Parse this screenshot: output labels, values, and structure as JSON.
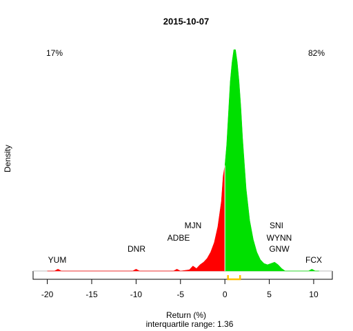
{
  "chart_data": {
    "type": "density",
    "title": "2015-10-07",
    "xlabel": "Return (%)",
    "subtitle": "interquartile range: 1.36",
    "ylabel": "Density",
    "left_share": "17%",
    "right_share": "82%",
    "x": [
      -20,
      -19.2,
      -18.8,
      -18.4,
      -10.4,
      -10,
      -9.6,
      -5.8,
      -5.4,
      -5,
      -4,
      -3.6,
      -3.2,
      -2.8,
      -2.4,
      -2,
      -1.6,
      -1.2,
      -0.8,
      -0.4,
      -0.2,
      0,
      0.2,
      0.4,
      0.6,
      0.8,
      1,
      1.2,
      1.4,
      1.6,
      1.8,
      2,
      2.4,
      2.8,
      3.2,
      3.6,
      4,
      4.4,
      4.8,
      5.2,
      5.6,
      6,
      6.4,
      6.8,
      9.4,
      9.8,
      10.2,
      10.6
    ],
    "values": [
      0,
      0,
      0.003,
      0,
      0,
      0.003,
      0,
      0,
      0.003,
      0,
      0.002,
      0.008,
      0.004,
      0.01,
      0.014,
      0.02,
      0.03,
      0.045,
      0.07,
      0.11,
      0.15,
      0.167,
      0.2,
      0.25,
      0.3,
      0.33,
      0.35,
      0.35,
      0.33,
      0.3,
      0.26,
      0.21,
      0.13,
      0.08,
      0.05,
      0.03,
      0.018,
      0.012,
      0.01,
      0.012,
      0.014,
      0.01,
      0.004,
      0,
      0,
      0.003,
      0,
      0
    ],
    "negative_color": "#ff0000",
    "positive_color": "#00e000",
    "quartiles": [
      0.35,
      1.71
    ],
    "quartile_color": "#ffc000",
    "tickers": [
      "YUM",
      "DNR",
      "ADBE",
      "MJN",
      "SNI",
      "WYNN",
      "GNW",
      "FCX"
    ],
    "xlim": [
      -21.6,
      12.1
    ],
    "xticks": [
      -20,
      -15,
      -10,
      -5,
      0,
      5,
      10
    ]
  }
}
